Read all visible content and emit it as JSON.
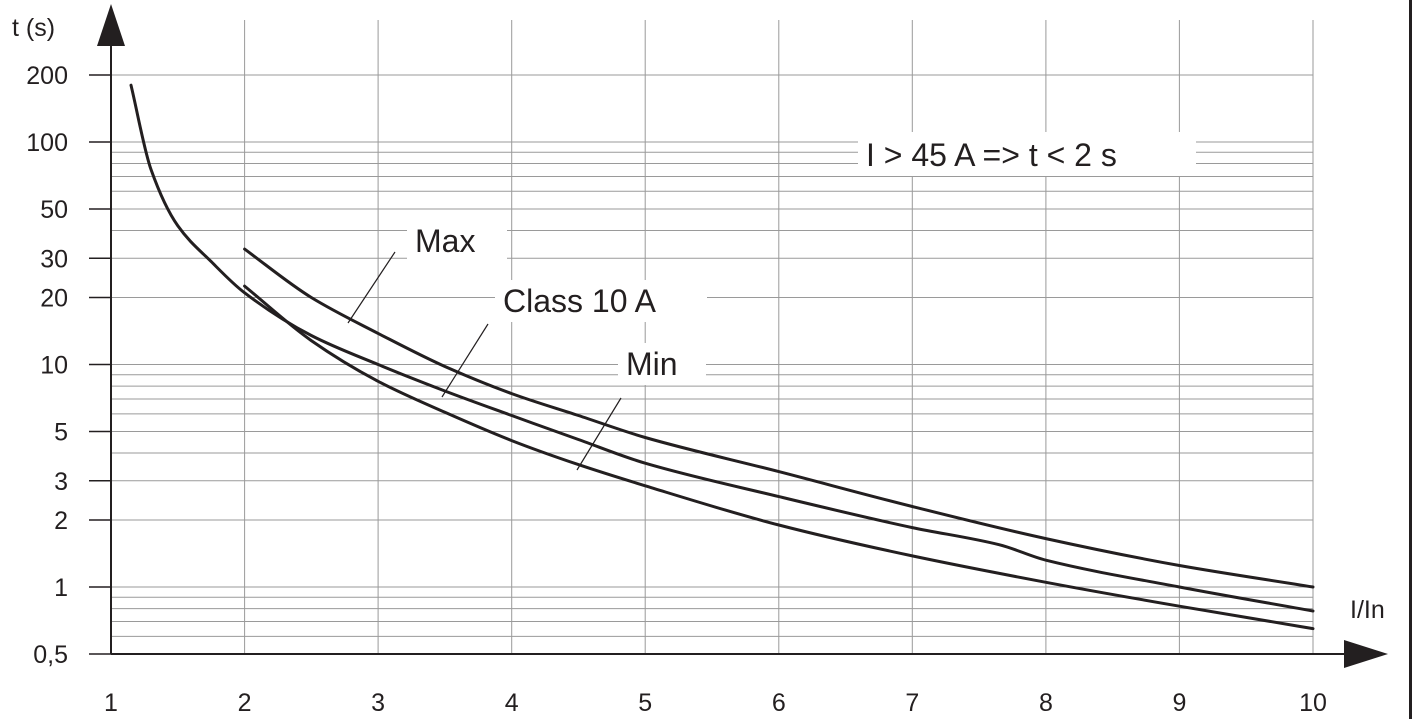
{
  "chart_data": {
    "type": "line",
    "xlabel": "I/In",
    "ylabel": "t (s)",
    "x_scale": "linear",
    "y_scale": "log",
    "xlim": [
      1,
      10
    ],
    "ylim": [
      0.5,
      200
    ],
    "x_ticks": [
      1,
      2,
      3,
      4,
      5,
      6,
      7,
      8,
      9,
      10
    ],
    "x_tick_labels": [
      "1",
      "2",
      "3",
      "4",
      "5",
      "6",
      "7",
      "8",
      "9",
      "10"
    ],
    "y_ticks": [
      0.5,
      1,
      2,
      3,
      5,
      10,
      20,
      30,
      50,
      100,
      200
    ],
    "y_tick_labels": [
      "0,5",
      "1",
      "2",
      "3",
      "5",
      "10",
      "20",
      "30",
      "50",
      "100",
      "200"
    ],
    "grid": true,
    "annotation": "I > 45 A => t < 2 s",
    "series": [
      {
        "name": "Class 10 A",
        "x": [
          1.15,
          1.3,
          1.5,
          1.75,
          2,
          2.5,
          3,
          3.5,
          4,
          4.5,
          5,
          6,
          7,
          7.65,
          8,
          9,
          10
        ],
        "y": [
          180,
          75,
          42,
          29,
          21,
          13.5,
          10,
          7.6,
          5.9,
          4.6,
          3.6,
          2.55,
          1.85,
          1.55,
          1.32,
          1.0,
          0.78
        ]
      },
      {
        "name": "Max",
        "x": [
          2,
          2.5,
          3,
          3.5,
          4,
          4.5,
          5,
          6,
          7,
          8,
          9,
          10
        ],
        "y": [
          33,
          20,
          13.8,
          9.8,
          7.4,
          5.9,
          4.7,
          3.3,
          2.3,
          1.65,
          1.25,
          1.0
        ]
      },
      {
        "name": "Min",
        "x": [
          2,
          2.5,
          3,
          3.5,
          4,
          4.5,
          5,
          6,
          7,
          8,
          9,
          10
        ],
        "y": [
          22.5,
          12.8,
          8.4,
          6.1,
          4.55,
          3.55,
          2.85,
          1.9,
          1.38,
          1.05,
          0.82,
          0.65
        ]
      }
    ]
  }
}
